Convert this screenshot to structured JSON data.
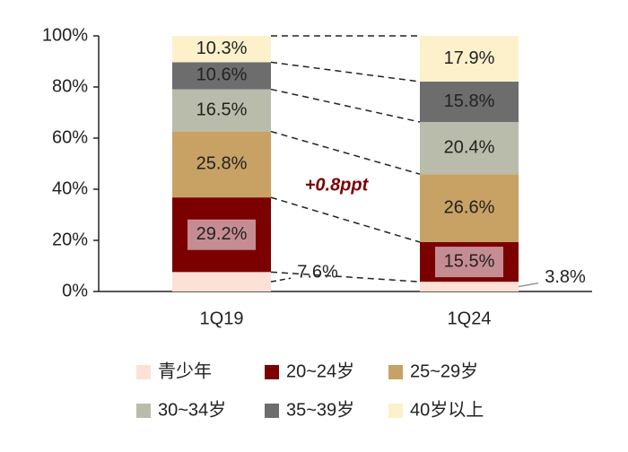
{
  "chart_data": {
    "type": "stacked-bar",
    "categories": [
      "1Q19",
      "1Q24"
    ],
    "series": [
      {
        "name": "青少年",
        "color": "#fde0d6",
        "values": [
          7.6,
          3.8
        ],
        "value_labels": [
          "7.6%",
          "3.8%"
        ]
      },
      {
        "name": "20~24岁",
        "color": "#7b0000",
        "values": [
          29.2,
          15.5
        ],
        "value_labels": [
          "29.2%",
          "15.5%"
        ]
      },
      {
        "name": "25~29岁",
        "color": "#c8a265",
        "values": [
          25.8,
          26.6
        ],
        "value_labels": [
          "25.8%",
          "26.6%"
        ]
      },
      {
        "name": "30~34岁",
        "color": "#b9bcaa",
        "values": [
          16.5,
          20.4
        ],
        "value_labels": [
          "16.5%",
          "20.4%"
        ]
      },
      {
        "name": "35~39岁",
        "color": "#6d6d6d",
        "values": [
          10.6,
          15.8
        ],
        "value_labels": [
          "10.6%",
          "15.8%"
        ]
      },
      {
        "name": "40岁以上",
        "color": "#fdf1cc",
        "values": [
          10.3,
          17.9
        ],
        "value_labels": [
          "10.3%",
          "17.9%"
        ]
      }
    ],
    "ylim": [
      0,
      100
    ],
    "yticks": [
      {
        "value": 0,
        "label": "0%"
      },
      {
        "value": 20,
        "label": "20%"
      },
      {
        "value": 40,
        "label": "40%"
      },
      {
        "value": 60,
        "label": "60%"
      },
      {
        "value": 80,
        "label": "80%"
      },
      {
        "value": 100,
        "label": "100%"
      }
    ],
    "annotation": "+0.8ppt"
  }
}
